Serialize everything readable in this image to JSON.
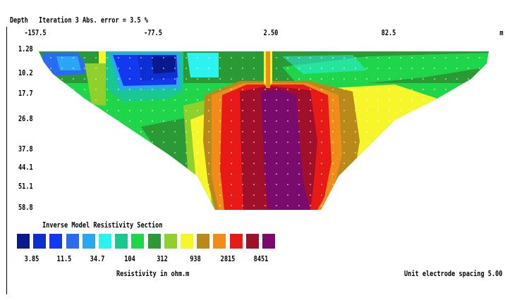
{
  "header": {
    "depth_label": "Depth",
    "iteration_text": "Iteration 3 Abs. error = 3.5 %",
    "x_unit": "m"
  },
  "chart_data": {
    "type": "heatmap",
    "title": "Inverse Model Resistivity Section",
    "x_ticks": [
      "-157.5",
      "-77.5",
      "2.50",
      "82.5"
    ],
    "x_tick_values": [
      -157.5,
      -77.5,
      2.5,
      82.5
    ],
    "xlim": [
      -187,
      167
    ],
    "y_ticks": [
      "1.28",
      "10.2",
      "17.7",
      "26.8",
      "37.8",
      "44.1",
      "51.1",
      "58.8"
    ],
    "y_tick_values": [
      1.28,
      10.2,
      17.7,
      26.8,
      37.8,
      44.1,
      51.1,
      58.8
    ],
    "legend": {
      "colors": [
        "#0a1a8c",
        "#0d2fd1",
        "#1438f0",
        "#2a6cf0",
        "#2aa6f2",
        "#2cf2f0",
        "#18c890",
        "#1fd64a",
        "#2a9a35",
        "#8fd02a",
        "#f6f62a",
        "#b98a1a",
        "#f08c1a",
        "#e81a18",
        "#a0102a",
        "#7a0a6e"
      ],
      "labels": [
        "3.85",
        "11.5",
        "34.7",
        "104",
        "312",
        "938",
        "2815",
        "8451"
      ],
      "axis_label": "Resistivity in ohm.m"
    },
    "electrode_spacing_text": "Unit electrode spacing 5.00 m"
  }
}
